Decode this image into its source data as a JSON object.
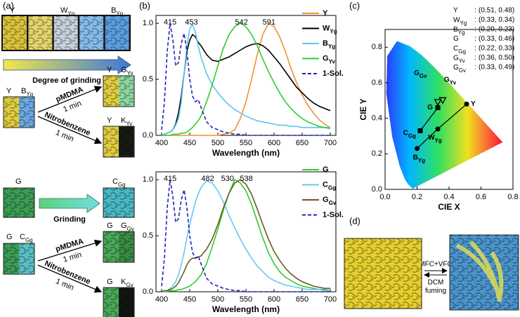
{
  "panel_labels": [
    "(a)",
    "(b)",
    "(c)",
    "(d)"
  ],
  "panel_a": {
    "grinding_series": {
      "labels": [
        "Y",
        "WYg",
        "BYg"
      ],
      "arrow": "Degree of grinding"
    },
    "row1": {
      "start": [
        "Y",
        "BYg"
      ],
      "top": {
        "reagent": "pMDMA",
        "time": "1 min",
        "result": [
          "Y",
          "GYv"
        ]
      },
      "bottom": {
        "reagent": "Nitrobenzene",
        "time": "1 min",
        "result": [
          "Y",
          "KYv"
        ]
      }
    },
    "row2": {
      "start": "G",
      "arrow": "Grinding",
      "result": "CGg"
    },
    "row3": {
      "start": [
        "G",
        "CGg"
      ],
      "top": {
        "reagent": "pMDMA",
        "time": "1 min",
        "result": [
          "G",
          "GGv"
        ]
      },
      "bottom": {
        "reagent": "Nitrobenzene",
        "time": "1 min",
        "result": [
          "G",
          "KGv"
        ]
      }
    }
  },
  "panel_d": {
    "top": "MFC+VFC",
    "bottom": [
      "DCM",
      "fuming"
    ]
  },
  "chart_data": [
    {
      "type": "line",
      "xlabel": "Wavelength (nm)",
      "xlim": [
        390,
        710
      ],
      "ylim": [
        0,
        1.07
      ],
      "xticks": [
        400,
        450,
        500,
        550,
        600,
        650,
        700
      ],
      "yticks": [
        {
          "value": 0,
          "label": "0.0"
        },
        {
          "value": 0.5,
          "label": "0.5"
        },
        {
          "value": 1,
          "label": "1.0"
        }
      ],
      "peak_labels": [
        415,
        453,
        542,
        591
      ],
      "x": [
        400,
        405,
        410,
        415,
        420,
        425,
        430,
        435,
        440,
        445,
        450,
        455,
        460,
        465,
        470,
        480,
        490,
        500,
        510,
        520,
        530,
        540,
        550,
        560,
        570,
        580,
        590,
        600,
        610,
        620,
        630,
        640,
        650,
        660,
        670,
        680,
        690,
        700
      ],
      "series": [
        {
          "name": "Y",
          "color": "#f39130",
          "values": [
            0,
            0,
            0,
            0,
            0,
            0,
            0,
            0,
            0,
            0,
            0,
            0,
            0,
            0,
            0,
            0,
            0,
            0,
            0.01,
            0.02,
            0.05,
            0.15,
            0.3,
            0.5,
            0.72,
            0.9,
            1.0,
            0.97,
            0.88,
            0.75,
            0.6,
            0.47,
            0.36,
            0.27,
            0.2,
            0.14,
            0.1,
            0.07
          ]
        },
        {
          "name": "WYg",
          "color": "#000000",
          "values": [
            0,
            0.01,
            0.02,
            0.03,
            0.05,
            0.1,
            0.2,
            0.35,
            0.55,
            0.75,
            0.85,
            0.9,
            0.88,
            0.83,
            0.8,
            0.72,
            0.67,
            0.66,
            0.68,
            0.7,
            0.73,
            0.76,
            0.79,
            0.81,
            0.82,
            0.8,
            0.76,
            0.7,
            0.64,
            0.57,
            0.5,
            0.43,
            0.38,
            0.33,
            0.29,
            0.26,
            0.24,
            0.22
          ]
        },
        {
          "name": "BYg",
          "color": "#5cc6ef",
          "values": [
            0,
            0.01,
            0.02,
            0.03,
            0.05,
            0.09,
            0.15,
            0.3,
            0.55,
            0.8,
            0.95,
            0.99,
            0.92,
            0.8,
            0.7,
            0.55,
            0.45,
            0.38,
            0.32,
            0.27,
            0.23,
            0.2,
            0.17,
            0.15,
            0.13,
            0.12,
            0.11,
            0.1,
            0.09,
            0.09,
            0.08,
            0.08,
            0.07,
            0.07,
            0.07,
            0.07,
            0.07,
            0.07
          ]
        },
        {
          "name": "GYv",
          "color": "#33cc33",
          "values": [
            0,
            0,
            0,
            0,
            0.01,
            0.01,
            0.01,
            0.02,
            0.02,
            0.03,
            0.05,
            0.07,
            0.1,
            0.13,
            0.17,
            0.3,
            0.45,
            0.62,
            0.78,
            0.9,
            0.97,
            1.0,
            0.97,
            0.9,
            0.8,
            0.68,
            0.57,
            0.47,
            0.38,
            0.3,
            0.24,
            0.19,
            0.15,
            0.12,
            0.1,
            0.08,
            0.07,
            0.06
          ]
        },
        {
          "name": "1-Sol.",
          "color": "#2222bb",
          "dashed": true,
          "values": [
            0.05,
            0.3,
            0.75,
            1.0,
            0.85,
            0.62,
            0.65,
            0.82,
            0.91,
            0.75,
            0.5,
            0.35,
            0.3,
            0.32,
            0.25,
            0.12,
            0.07,
            0.05,
            0.03,
            0.02,
            0.01,
            0.01,
            0,
            0,
            0,
            0,
            0,
            0,
            0,
            0,
            0,
            0,
            0,
            0,
            0,
            0,
            0,
            0
          ]
        }
      ]
    },
    {
      "type": "line",
      "xlabel": "Wavelength (nm)",
      "xlim": [
        390,
        710
      ],
      "ylim": [
        0,
        1.07
      ],
      "xticks": [
        400,
        450,
        500,
        550,
        600,
        650,
        700
      ],
      "yticks": [
        {
          "value": 0,
          "label": "0.0"
        },
        {
          "value": 0.5,
          "label": "0.5"
        },
        {
          "value": 1,
          "label": "1.0"
        }
      ],
      "peak_labels": [
        415,
        482,
        530,
        538
      ],
      "x": [
        400,
        405,
        410,
        415,
        420,
        425,
        430,
        435,
        440,
        445,
        450,
        455,
        460,
        465,
        470,
        480,
        490,
        500,
        510,
        520,
        530,
        540,
        550,
        560,
        570,
        580,
        590,
        600,
        610,
        620,
        630,
        640,
        650,
        660,
        670,
        680,
        690,
        700
      ],
      "series": [
        {
          "name": "G",
          "color": "#2ecc2e",
          "values": [
            0,
            0,
            0,
            0.01,
            0.01,
            0.01,
            0.02,
            0.02,
            0.03,
            0.04,
            0.05,
            0.07,
            0.09,
            0.12,
            0.15,
            0.25,
            0.4,
            0.56,
            0.73,
            0.88,
            1.0,
            0.97,
            0.9,
            0.78,
            0.63,
            0.48,
            0.35,
            0.25,
            0.18,
            0.13,
            0.1,
            0.07,
            0.05,
            0.04,
            0.03,
            0.02,
            0.02,
            0.01
          ]
        },
        {
          "name": "CGg",
          "color": "#66c8f0",
          "values": [
            0,
            0,
            0.01,
            0.03,
            0.05,
            0.09,
            0.15,
            0.24,
            0.35,
            0.48,
            0.6,
            0.7,
            0.8,
            0.87,
            0.93,
            0.99,
            0.97,
            0.9,
            0.8,
            0.68,
            0.57,
            0.47,
            0.38,
            0.3,
            0.23,
            0.18,
            0.13,
            0.1,
            0.08,
            0.06,
            0.05,
            0.04,
            0.03,
            0.02,
            0.02,
            0.02,
            0.01,
            0.01
          ]
        },
        {
          "name": "GGv",
          "color": "#6b5a1e",
          "values": [
            0,
            0.01,
            0.01,
            0.02,
            0.03,
            0.05,
            0.08,
            0.13,
            0.18,
            0.24,
            0.28,
            0.3,
            0.3,
            0.31,
            0.32,
            0.38,
            0.47,
            0.6,
            0.75,
            0.88,
            0.97,
            1.0,
            0.96,
            0.87,
            0.74,
            0.6,
            0.47,
            0.36,
            0.28,
            0.21,
            0.16,
            0.12,
            0.09,
            0.07,
            0.05,
            0.04,
            0.03,
            0.03
          ]
        },
        {
          "name": "1-Sol.",
          "color": "#2222bb",
          "dashed": true,
          "values": [
            0.05,
            0.3,
            0.75,
            1.0,
            0.85,
            0.62,
            0.65,
            0.82,
            0.91,
            0.75,
            0.5,
            0.35,
            0.3,
            0.32,
            0.25,
            0.12,
            0.07,
            0.05,
            0.03,
            0.02,
            0.01,
            0.01,
            0,
            0,
            0,
            0,
            0,
            0,
            0,
            0,
            0,
            0,
            0,
            0,
            0,
            0,
            0,
            0
          ]
        }
      ]
    },
    {
      "type": "scatter",
      "xlabel": "CIE X",
      "ylabel": "CIE Y",
      "xlim": [
        0,
        0.8
      ],
      "ylim": [
        0,
        0.9
      ],
      "color": "#000000",
      "xticks": [
        {
          "value": 0,
          "label": "0.0"
        },
        {
          "value": 0.2,
          "label": "0.2"
        },
        {
          "value": 0.4,
          "label": "0.4"
        },
        {
          "value": 0.6,
          "label": "0.6"
        },
        {
          "value": 0.8,
          "label": "0.8"
        }
      ],
      "yticks": [
        {
          "value": 0,
          "label": "0.0"
        },
        {
          "value": 0.2,
          "label": "0.2"
        },
        {
          "value": 0.4,
          "label": "0.4"
        },
        {
          "value": 0.6,
          "label": "0.6"
        },
        {
          "value": 0.8,
          "label": "0.8"
        }
      ],
      "points": [
        {
          "name": "Y",
          "x": 0.51,
          "y": 0.48,
          "label": "(0.51, 0.48)",
          "marker": "circle"
        },
        {
          "name": "WYg",
          "x": 0.33,
          "y": 0.34,
          "label": "(0.33, 0.34)",
          "marker": "circle"
        },
        {
          "name": "BYg",
          "x": 0.2,
          "y": 0.23,
          "label": "(0.20, 0.23)",
          "marker": "circle"
        },
        {
          "name": "G",
          "x": 0.33,
          "y": 0.46,
          "label": "(0.33, 0.46)",
          "marker": "square"
        },
        {
          "name": "CGg",
          "x": 0.22,
          "y": 0.33,
          "label": "(0.22, 0.33)",
          "marker": "square"
        },
        {
          "name": "GYv",
          "x": 0.36,
          "y": 0.5,
          "label": "(0.36, 0.50)",
          "marker": "triangle"
        },
        {
          "name": "GGv",
          "x": 0.33,
          "y": 0.49,
          "label": "(0.33, 0.49)",
          "marker": "triangle"
        }
      ]
    }
  ]
}
